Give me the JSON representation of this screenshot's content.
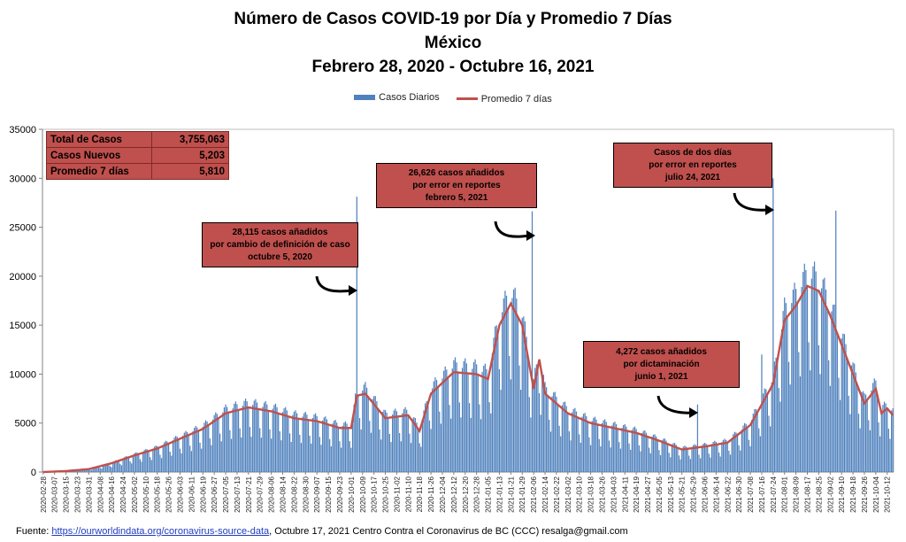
{
  "title": {
    "line1": "Número de  Casos  COVID-19 por Día y Promedio 7 Días",
    "line2": "México",
    "line3": "Febrero 28, 2020 - Octubre 16, 2021"
  },
  "legend": {
    "bars": "Casos Diarios",
    "line": "Promedio 7 días"
  },
  "stats": [
    {
      "label": "Total de Casos",
      "value": "3,755,063"
    },
    {
      "label": "Casos Nuevos",
      "value": "5,203"
    },
    {
      "label": "Promedio 7 días",
      "value": "5,810"
    }
  ],
  "callouts": [
    {
      "lines": [
        "28,115 casos  añadidos",
        "por cambio de definición de caso",
        "octubre 5, 2020"
      ]
    },
    {
      "lines": [
        "26,626 casos  añadidos",
        "por error en reportes",
        "febrero  5, 2021"
      ]
    },
    {
      "lines": [
        "Casos de dos días",
        "por error en reportes",
        "julio 24, 2021"
      ]
    },
    {
      "lines": [
        "4,272 casos  añadidos",
        "por dictaminación",
        "junio 1, 2021"
      ]
    }
  ],
  "footer": {
    "prefix": "Fuente: ",
    "link": "https://ourworldindata.org/coronavirus-source-data",
    "suffix": ",  Octubre 17, 2021   Centro  Contra el Coronavirus de BC  (CCC) resalga@gmail.com"
  },
  "colors": {
    "bars": "#4f81bd",
    "line": "#c0504d",
    "callout": "#c0504d"
  },
  "chart_data": {
    "type": "bar",
    "title": "Número de  Casos  COVID-19 por Día y Promedio 7 Días",
    "ylim": [
      0,
      35000
    ],
    "yticks": [
      0,
      5000,
      10000,
      15000,
      20000,
      25000,
      30000,
      35000
    ],
    "ytick_labels": [
      "0",
      "5000",
      "10000",
      "15000",
      "20000",
      "25000",
      "30000",
      "35000"
    ],
    "xticks": [
      "2020-02-28",
      "2020-03-07",
      "2020-03-15",
      "2020-03-23",
      "2020-03-31",
      "2020-04-08",
      "2020-04-16",
      "2020-04-24",
      "2020-05-02",
      "2020-05-10",
      "2020-05-18",
      "2020-05-26",
      "2020-06-03",
      "2020-06-11",
      "2020-06-19",
      "2020-06-27",
      "2020-07-05",
      "2020-07-13",
      "2020-07-21",
      "2020-07-29",
      "2020-08-06",
      "2020-08-14",
      "2020-08-22",
      "2020-08-30",
      "2020-09-07",
      "2020-09-15",
      "2020-09-23",
      "2020-10-01",
      "2020-10-09",
      "2020-10-17",
      "2020-10-25",
      "2020-11-02",
      "2020-11-10",
      "2020-11-18",
      "2020-11-26",
      "2020-12-04",
      "2020-12-12",
      "2020-12-20",
      "2020-12-28",
      "2021-01-05",
      "2021-01-13",
      "2021-01-21",
      "2021-01-29",
      "2021-02-06",
      "2021-02-14",
      "2021-02-22",
      "2021-03-02",
      "2021-03-10",
      "2021-03-18",
      "2021-03-26",
      "2021-04-03",
      "2021-04-11",
      "2021-04-19",
      "2021-04-27",
      "2021-05-05",
      "2021-05-13",
      "2021-05-21",
      "2021-05-29",
      "2021-06-06",
      "2021-06-14",
      "2021-06-22",
      "2021-06-30",
      "2021-07-08",
      "2021-07-16",
      "2021-07-24",
      "2021-08-01",
      "2021-08-09",
      "2021-08-17",
      "2021-08-25",
      "2021-09-02",
      "2021-09-10",
      "2021-09-18",
      "2021-09-26",
      "2021-10-04",
      "2021-10-12"
    ],
    "series": [
      {
        "name": "Casos Diarios",
        "type": "bar",
        "x": [
          "2020-02-28",
          "2020-03-15",
          "2020-03-31",
          "2020-04-16",
          "2020-05-02",
          "2020-05-18",
          "2020-06-03",
          "2020-06-19",
          "2020-07-05",
          "2020-07-21",
          "2020-08-06",
          "2020-08-22",
          "2020-09-07",
          "2020-09-23",
          "2020-10-05",
          "2020-10-09",
          "2020-10-25",
          "2020-11-10",
          "2020-11-26",
          "2020-12-12",
          "2020-12-28",
          "2021-01-13",
          "2021-01-21",
          "2021-02-05",
          "2021-02-14",
          "2021-03-02",
          "2021-03-18",
          "2021-04-03",
          "2021-04-19",
          "2021-05-05",
          "2021-05-21",
          "2021-06-01",
          "2021-06-14",
          "2021-06-30",
          "2021-07-16",
          "2021-07-24",
          "2021-08-09",
          "2021-08-17",
          "2021-08-25",
          "2021-09-06",
          "2021-09-18",
          "2021-10-04",
          "2021-10-16"
        ],
        "values": [
          0,
          100,
          600,
          1200,
          2200,
          3000,
          4200,
          5200,
          6800,
          7500,
          6700,
          5600,
          5300,
          4700,
          28115,
          4800,
          5800,
          5200,
          10000,
          11500,
          10200,
          19000,
          21000,
          26626,
          9000,
          7000,
          5200,
          4200,
          3800,
          3300,
          2600,
          6900,
          3000,
          4500,
          12000,
          30000,
          23000,
          22000,
          19000,
          26700,
          8500,
          9000,
          5203
        ]
      },
      {
        "name": "Promedio 7 días",
        "type": "line",
        "x": [
          "2020-02-28",
          "2020-03-15",
          "2020-03-31",
          "2020-04-16",
          "2020-05-02",
          "2020-05-18",
          "2020-06-03",
          "2020-06-19",
          "2020-07-05",
          "2020-07-21",
          "2020-08-06",
          "2020-08-22",
          "2020-09-07",
          "2020-09-23",
          "2020-10-01",
          "2020-10-05",
          "2020-10-11",
          "2020-10-25",
          "2020-11-10",
          "2020-11-18",
          "2020-11-26",
          "2020-12-12",
          "2020-12-28",
          "2021-01-05",
          "2021-01-13",
          "2021-01-21",
          "2021-01-29",
          "2021-02-06",
          "2021-02-10",
          "2021-02-14",
          "2021-03-02",
          "2021-03-18",
          "2021-04-03",
          "2021-04-19",
          "2021-05-05",
          "2021-05-21",
          "2021-06-06",
          "2021-06-22",
          "2021-07-08",
          "2021-07-24",
          "2021-08-01",
          "2021-08-09",
          "2021-08-17",
          "2021-08-25",
          "2021-09-02",
          "2021-09-10",
          "2021-09-18",
          "2021-09-26",
          "2021-10-04",
          "2021-10-08",
          "2021-10-12",
          "2021-10-16"
        ],
        "values": [
          0,
          100,
          300,
          900,
          1700,
          2400,
          3400,
          4400,
          6000,
          6600,
          6200,
          5500,
          5200,
          4500,
          4500,
          7800,
          8000,
          5500,
          5800,
          4200,
          8000,
          10200,
          10000,
          9500,
          15000,
          17200,
          15000,
          8500,
          11500,
          8000,
          6000,
          5000,
          4500,
          4000,
          3200,
          2300,
          2600,
          3000,
          4800,
          9000,
          15500,
          17000,
          19000,
          18500,
          16000,
          13000,
          10000,
          7000,
          8500,
          6000,
          6500,
          5810
        ]
      }
    ]
  }
}
